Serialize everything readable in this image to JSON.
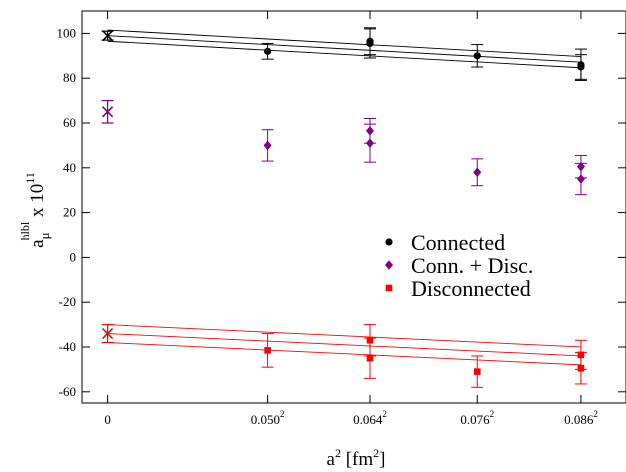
{
  "chart_data": {
    "type": "scatter",
    "x_axis": {
      "label_base": "a",
      "label_sup": "2",
      "label_unit_open": " [fm",
      "label_unit_sup": "2",
      "label_unit_close": "]",
      "range": [
        -0.0004,
        0.0081
      ],
      "ticks": [
        {
          "value": 0,
          "base": "0",
          "sup": ""
        },
        {
          "value": 0.0025,
          "base": "0.050",
          "sup": "2"
        },
        {
          "value": 0.0041,
          "base": "0.064",
          "sup": "2"
        },
        {
          "value": 0.005776,
          "base": "0.076",
          "sup": "2"
        },
        {
          "value": 0.007396,
          "base": "0.086",
          "sup": "2"
        }
      ]
    },
    "y_axis": {
      "label_a": "a",
      "label_sub": "μ",
      "label_sup": "hlbl",
      "label_rest": " x 10",
      "label_exp": "11",
      "range": [
        -65,
        110
      ],
      "ticks": [
        -60,
        -40,
        -20,
        0,
        20,
        40,
        60,
        80,
        100
      ]
    },
    "series": [
      {
        "name": "Connected",
        "color": "#000000",
        "marker": "circle",
        "points": [
          {
            "x": 0.0025,
            "y": 92.0,
            "err": 3.5
          },
          {
            "x": 0.0041,
            "y": 95.5,
            "err": 6.5
          },
          {
            "x": 0.0041,
            "y": 96.5,
            "err": 6.0
          },
          {
            "x": 0.005776,
            "y": 90.0,
            "err": 5.0
          },
          {
            "x": 0.007396,
            "y": 86.0,
            "err": 7.0
          },
          {
            "x": 0.007396,
            "y": 85.0,
            "err": 5.5
          }
        ],
        "extrapolation": {
          "x": 0,
          "y": 99.0,
          "err": 2.0
        },
        "fit": {
          "intercept": 99.0,
          "slope": -1600,
          "band": 2.5
        }
      },
      {
        "name": "Conn. + Disc.",
        "color": "#800080",
        "marker": "diamond",
        "points": [
          {
            "x": 0.0025,
            "y": 50.0,
            "err": 7.0
          },
          {
            "x": 0.0041,
            "y": 56.5,
            "err": 5.5
          },
          {
            "x": 0.0041,
            "y": 51.0,
            "err": 8.5
          },
          {
            "x": 0.005776,
            "y": 38.0,
            "err": 6.0
          },
          {
            "x": 0.007396,
            "y": 40.5,
            "err": 5.0
          },
          {
            "x": 0.007396,
            "y": 35.0,
            "err": 7.0
          }
        ],
        "extrapolation": {
          "x": 0,
          "y": 65.0,
          "err": 5.0
        }
      },
      {
        "name": "Disconnected",
        "color": "#ff0000",
        "marker": "square",
        "points": [
          {
            "x": 0.0025,
            "y": -41.5,
            "err": 7.5
          },
          {
            "x": 0.0041,
            "y": -37.0,
            "err": 7.0
          },
          {
            "x": 0.0041,
            "y": -45.0,
            "err": 9.0
          },
          {
            "x": 0.005776,
            "y": -51.0,
            "err": 7.0
          },
          {
            "x": 0.007396,
            "y": -43.5,
            "err": 6.5
          },
          {
            "x": 0.007396,
            "y": -49.5,
            "err": 7.0
          }
        ],
        "extrapolation": {
          "x": 0,
          "y": -34.0,
          "err": 4.0
        },
        "fit": {
          "intercept": -34.0,
          "slope": -1350,
          "band": 4.0
        }
      }
    ],
    "legend_position": "center-right",
    "grid": false
  }
}
